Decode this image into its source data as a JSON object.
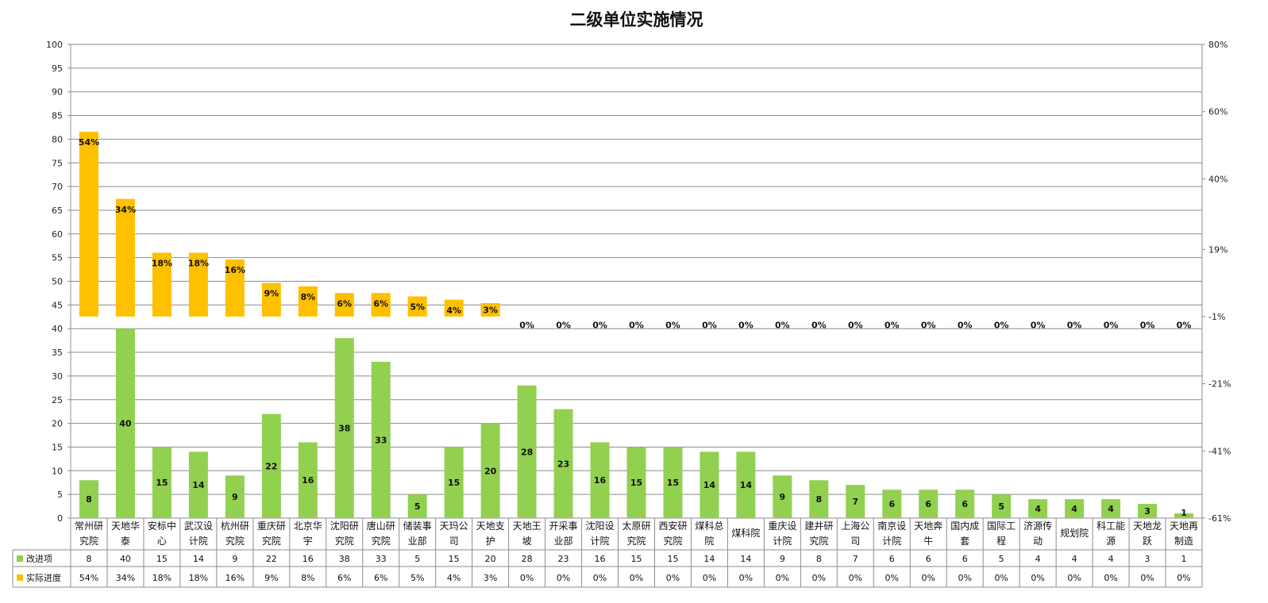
{
  "chart_data": {
    "type": "bar",
    "title": "二级单位实施情况",
    "categories": [
      [
        "常州研",
        "究院"
      ],
      [
        "天地华",
        "泰"
      ],
      [
        "安标中",
        "心"
      ],
      [
        "武汉设",
        "计院"
      ],
      [
        "杭州研",
        "究院"
      ],
      [
        "重庆研",
        "究院"
      ],
      [
        "北京华",
        "宇"
      ],
      [
        "沈阳研",
        "究院"
      ],
      [
        "唐山研",
        "究院"
      ],
      [
        "储装事",
        "业部"
      ],
      [
        "天玛公",
        "司"
      ],
      [
        "天地支",
        "护"
      ],
      [
        "天地王",
        "坡"
      ],
      [
        "开采事",
        "业部"
      ],
      [
        "沈阳设",
        "计院"
      ],
      [
        "太原研",
        "究院"
      ],
      [
        "西安研",
        "究院"
      ],
      [
        "煤科总",
        "院"
      ],
      [
        "煤科院"
      ],
      [
        "重庆设",
        "计院"
      ],
      [
        "建井研",
        "究院"
      ],
      [
        "上海公",
        "司"
      ],
      [
        "南京设",
        "计院"
      ],
      [
        "天地奔",
        "牛"
      ],
      [
        "国内成",
        "套"
      ],
      [
        "国际工",
        "程"
      ],
      [
        "济源传",
        "动"
      ],
      [
        "规划院"
      ],
      [
        "科工能",
        "源"
      ],
      [
        "天地龙",
        "跃"
      ],
      [
        "天地再",
        "制造"
      ]
    ],
    "series": [
      {
        "name": "改进项",
        "color": "#92D050",
        "axis": "left",
        "values": [
          8,
          40,
          15,
          14,
          9,
          22,
          16,
          38,
          33,
          5,
          15,
          20,
          28,
          23,
          16,
          15,
          15,
          14,
          14,
          9,
          8,
          7,
          6,
          6,
          6,
          5,
          4,
          4,
          4,
          3,
          1
        ],
        "labels": [
          "8",
          "40",
          "15",
          "14",
          "9",
          "22",
          "16",
          "38",
          "33",
          "5",
          "15",
          "20",
          "28",
          "23",
          "16",
          "15",
          "15",
          "14",
          "14",
          "9",
          "8",
          "7",
          "6",
          "6",
          "6",
          "5",
          "4",
          "4",
          "4",
          "3",
          "1"
        ]
      },
      {
        "name": "实际进度",
        "color": "#FFC000",
        "axis": "right",
        "values": [
          54,
          34,
          18,
          18,
          16,
          9,
          8,
          6,
          6,
          5,
          4,
          3,
          0,
          0,
          0,
          0,
          0,
          0,
          0,
          0,
          0,
          0,
          0,
          0,
          0,
          0,
          0,
          0,
          0,
          0,
          0
        ],
        "labels": [
          "54%",
          "34%",
          "18%",
          "18%",
          "16%",
          "9%",
          "8%",
          "6%",
          "6%",
          "5%",
          "4%",
          "3%",
          "0%",
          "0%",
          "0%",
          "0%",
          "0%",
          "0%",
          "0%",
          "0%",
          "0%",
          "0%",
          "0%",
          "0%",
          "0%",
          "0%",
          "0%",
          "0%",
          "0%",
          "0%",
          "0%"
        ]
      }
    ],
    "y_left": {
      "min": 0,
      "max": 100,
      "step": 5
    },
    "y_right": {
      "min": -61,
      "max": 80,
      "ticks": [
        "80%",
        "60%",
        "40%",
        "19%",
        "-1%",
        "-21%",
        "-41%",
        "-61%"
      ],
      "tick_values": [
        80,
        60,
        40,
        19,
        -1,
        -21,
        -41,
        -61
      ]
    },
    "grid": true,
    "legend": "data-table"
  }
}
